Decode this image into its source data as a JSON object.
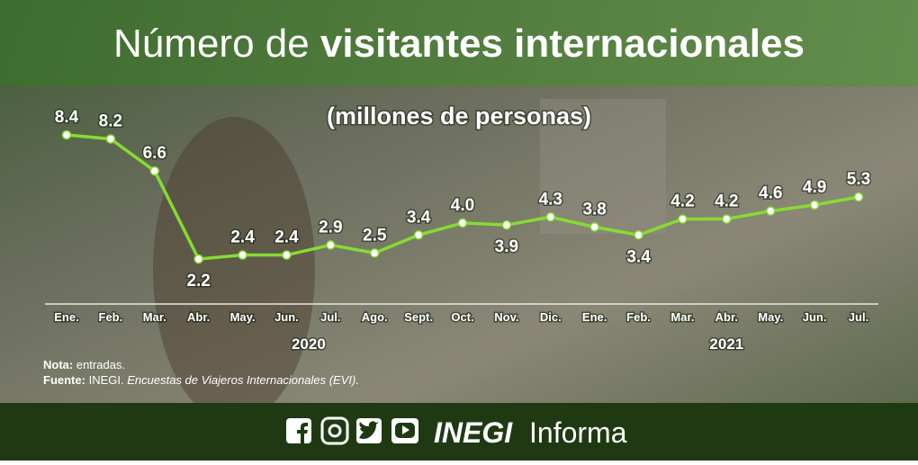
{
  "header": {
    "title_light": "Número de",
    "title_bold": "visitantes internacionales"
  },
  "chart_data": {
    "type": "line",
    "subtitle": "(millones de personas)",
    "categories": [
      "Ene.",
      "Feb.",
      "Mar.",
      "Abr.",
      "May.",
      "Jun.",
      "Jul.",
      "Ago.",
      "Sept.",
      "Oct.",
      "Nov.",
      "Dic.",
      "Ene.",
      "Feb.",
      "Mar.",
      "Abr.",
      "May.",
      "Jun.",
      "Jul."
    ],
    "x_groups": [
      "2020",
      "2021"
    ],
    "values": [
      8.4,
      8.2,
      6.6,
      2.2,
      2.4,
      2.4,
      2.9,
      2.5,
      3.4,
      4.0,
      3.9,
      4.3,
      3.8,
      3.4,
      4.2,
      4.2,
      4.6,
      4.9,
      5.3
    ],
    "value_labels": [
      "8.4",
      "8.2",
      "6.6",
      "2.2",
      "2.4",
      "2.4",
      "2.9",
      "2.5",
      "3.4",
      "4.0",
      "3.9",
      "4.3",
      "3.8",
      "3.4",
      "4.2",
      "4.2",
      "4.6",
      "4.9",
      "5.3"
    ],
    "color": "#86dc32"
  },
  "notes": {
    "note_label": "Nota:",
    "note_text": "entradas.",
    "source_label": "Fuente:",
    "source_org": "INEGI.",
    "source_text": "Encuestas de Viajeros Internacionales (EVI)."
  },
  "footer": {
    "brand": "INEGI",
    "suffix": "Informa"
  }
}
